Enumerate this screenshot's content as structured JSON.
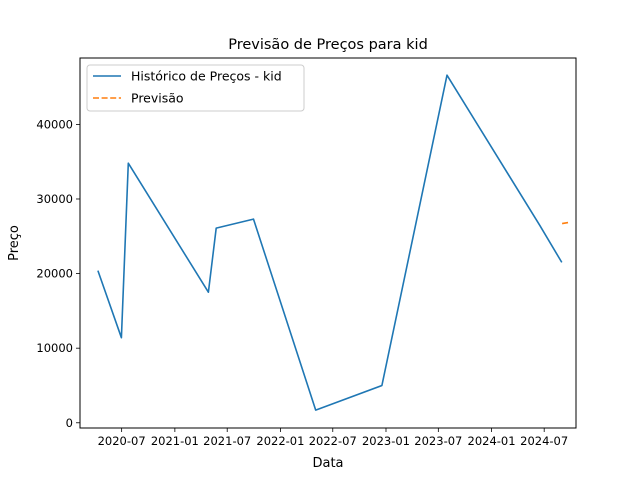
{
  "chart_data": {
    "type": "line",
    "title": "Previsão de Preços para kid",
    "xlabel": "Data",
    "ylabel": "Preço",
    "xlim": [
      "2020-02-08",
      "2024-10-19"
    ],
    "ylim": [
      -700,
      48900
    ],
    "x_ticks": [
      {
        "date": "2020-07-01",
        "label": "2020-07"
      },
      {
        "date": "2021-01-01",
        "label": "2021-01"
      },
      {
        "date": "2021-07-01",
        "label": "2021-07"
      },
      {
        "date": "2022-01-01",
        "label": "2022-01"
      },
      {
        "date": "2022-07-01",
        "label": "2022-07"
      },
      {
        "date": "2023-01-01",
        "label": "2023-01"
      },
      {
        "date": "2023-07-01",
        "label": "2023-07"
      },
      {
        "date": "2024-01-01",
        "label": "2024-01"
      },
      {
        "date": "2024-07-01",
        "label": "2024-07"
      }
    ],
    "y_ticks": [
      {
        "value": 0,
        "label": "0"
      },
      {
        "value": 10000,
        "label": "10000"
      },
      {
        "value": 20000,
        "label": "20000"
      },
      {
        "value": 30000,
        "label": "30000"
      },
      {
        "value": 40000,
        "label": "40000"
      }
    ],
    "grid": false,
    "legend_position": "top-left",
    "series": [
      {
        "name": "Histórico de Preços - kid",
        "color": "#1f77b4",
        "style": "solid",
        "points": [
          {
            "x": "2020-04-10",
            "y": 20400
          },
          {
            "x": "2020-06-30",
            "y": 11400
          },
          {
            "x": "2020-07-24",
            "y": 34800
          },
          {
            "x": "2021-04-27",
            "y": 17500
          },
          {
            "x": "2021-05-24",
            "y": 26100
          },
          {
            "x": "2021-09-30",
            "y": 27300
          },
          {
            "x": "2022-05-03",
            "y": 1700
          },
          {
            "x": "2022-12-18",
            "y": 5000
          },
          {
            "x": "2023-07-31",
            "y": 46600
          },
          {
            "x": "2024-06-15",
            "y": 26500
          },
          {
            "x": "2024-08-31",
            "y": 21500
          }
        ]
      },
      {
        "name": "Previsão",
        "color": "#ff7f0e",
        "style": "dashed",
        "points": [
          {
            "x": "2024-09-01",
            "y": 26700
          },
          {
            "x": "2024-09-30",
            "y": 26900
          }
        ]
      }
    ]
  }
}
